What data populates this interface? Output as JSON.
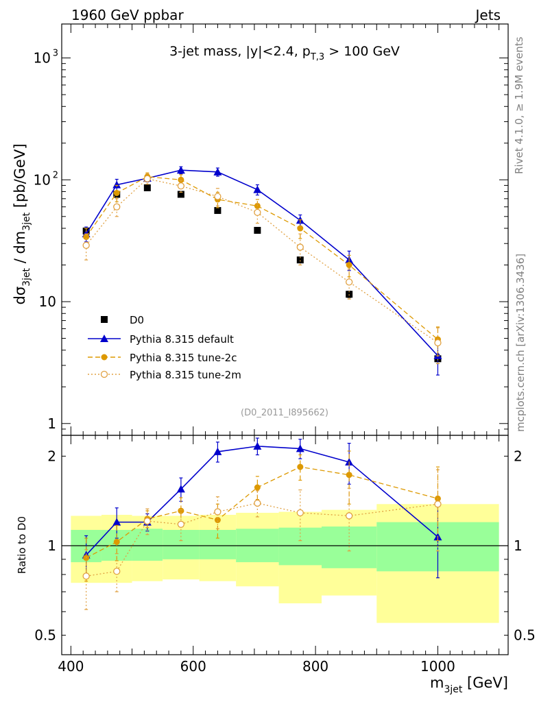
{
  "header": {
    "left": "1960 GeV ppbar",
    "right": "Jets"
  },
  "side_labels": {
    "rivet": "Rivet 4.1.0, ≥ 1.9M events",
    "mcplots": "mcplots.cern.ch [arXiv:1306.3436]"
  },
  "colors": {
    "data": "#000000",
    "default": "#0000cc",
    "tune2c": "#dd9900",
    "tune2m": "#e0a040",
    "band_inner": "#99ff99",
    "band_outer": "#ffff99"
  },
  "chart_data": [
    {
      "type": "line",
      "title": "3-jet mass, |y|<2.4, p_T,3 > 100 GeV",
      "title_parts": {
        "main": "3-jet mass, |y|<2.4, p",
        "sub": "T,3",
        "tail": " > 100 GeV"
      },
      "analysis_id": "(D0_2011_I895662)",
      "ylabel": "dσ_3jet / dm_3jet [pb/GeV]",
      "ylabel_parts": {
        "a": "dσ",
        "a_sub": "3jet",
        "b": " / dm",
        "b_sub": "3jet",
        "c": " [pb/GeV]"
      },
      "yscale": "log",
      "ylim": [
        0.8,
        1900
      ],
      "xlim": [
        385,
        1115
      ],
      "yticks": [
        {
          "v": 1,
          "label": "1"
        },
        {
          "v": 10,
          "label": "10"
        }
      ],
      "ytick_pow": [
        {
          "v": 100,
          "base": "10",
          "exp": "2"
        },
        {
          "v": 1000,
          "base": "10",
          "exp": "3"
        }
      ],
      "legend_position": "middle-left",
      "legend": [
        "D0",
        "Pythia 8.315 default",
        "Pythia 8.315 tune-2c",
        "Pythia 8.315 tune-2m"
      ],
      "data": {
        "name": "D0",
        "x": [
          425,
          475,
          525,
          580,
          640,
          705,
          775,
          855,
          1000
        ],
        "y": [
          38,
          76,
          86,
          76,
          56,
          38.5,
          22,
          11.5,
          3.4
        ],
        "err": [
          2,
          4,
          4,
          3,
          2.5,
          2,
          1,
          0.7,
          0.3
        ]
      },
      "series": [
        {
          "name": "Pythia 8.315 default",
          "x": [
            425,
            475,
            525,
            580,
            640,
            705,
            775,
            855,
            1000
          ],
          "y": [
            36,
            91,
            103,
            120,
            116,
            83,
            46.5,
            22,
            3.6
          ],
          "err": [
            5,
            10,
            7,
            8,
            9,
            8,
            5,
            4,
            1.1
          ]
        },
        {
          "name": "Pythia 8.315 tune-2c",
          "x": [
            425,
            475,
            525,
            580,
            640,
            705,
            775,
            855,
            1000
          ],
          "y": [
            34,
            78,
            106,
            100,
            69,
            61,
            40,
            20,
            4.9
          ],
          "err": [
            6,
            12,
            8,
            10,
            10,
            8,
            7,
            4,
            1.3
          ]
        },
        {
          "name": "Pythia 8.315 tune-2m",
          "x": [
            425,
            475,
            525,
            580,
            640,
            705,
            775,
            855,
            1000
          ],
          "y": [
            29,
            60,
            102,
            89,
            73,
            54,
            28,
            14.5,
            4.6
          ],
          "err": [
            7,
            10,
            10,
            10,
            12,
            10,
            8,
            4,
            1.5
          ]
        }
      ]
    },
    {
      "type": "line",
      "ylabel": "Ratio to D0",
      "xlabel": "m_3jet [GeV]",
      "xlabel_parts": {
        "a": "m",
        "a_sub": "3jet",
        "b": " [GeV]"
      },
      "yscale": "log",
      "ylim": [
        0.43,
        2.35
      ],
      "xlim": [
        385,
        1115
      ],
      "yticks": [
        {
          "v": 0.5,
          "label": "0.5"
        },
        {
          "v": 1,
          "label": "1"
        },
        {
          "v": 2,
          "label": "2"
        }
      ],
      "xticks": [
        {
          "v": 400,
          "label": "400"
        },
        {
          "v": 600,
          "label": "600"
        },
        {
          "v": 800,
          "label": "800"
        },
        {
          "v": 1000,
          "label": "1000"
        }
      ],
      "reference_line": 1,
      "bands": {
        "edges": [
          400,
          450,
          500,
          550,
          610,
          670,
          740,
          810,
          900,
          1100
        ],
        "inner_lo": [
          0.88,
          0.89,
          0.89,
          0.9,
          0.9,
          0.88,
          0.86,
          0.84,
          0.82
        ],
        "inner_hi": [
          1.13,
          1.13,
          1.14,
          1.13,
          1.13,
          1.14,
          1.15,
          1.16,
          1.2
        ],
        "outer_lo": [
          0.75,
          0.75,
          0.76,
          0.77,
          0.76,
          0.73,
          0.64,
          0.68,
          0.55
        ],
        "outer_hi": [
          1.26,
          1.27,
          1.26,
          1.26,
          1.27,
          1.29,
          1.3,
          1.32,
          1.38
        ]
      },
      "series": [
        {
          "name": "Pythia 8.315 default",
          "x": [
            425,
            475,
            525,
            580,
            640,
            705,
            775,
            855,
            1000
          ],
          "y": [
            0.93,
            1.2,
            1.2,
            1.55,
            2.07,
            2.16,
            2.12,
            1.91,
            1.07
          ],
          "err": [
            0.15,
            0.14,
            0.08,
            0.14,
            0.16,
            0.14,
            0.16,
            0.3,
            0.29
          ]
        },
        {
          "name": "Pythia 8.315 tune-2c",
          "x": [
            425,
            475,
            525,
            580,
            640,
            705,
            775,
            855,
            1000
          ],
          "y": [
            0.91,
            1.03,
            1.23,
            1.31,
            1.22,
            1.57,
            1.84,
            1.73,
            1.44
          ],
          "err": [
            0.15,
            0.14,
            0.08,
            0.14,
            0.16,
            0.14,
            0.18,
            0.35,
            0.4
          ]
        },
        {
          "name": "Pythia 8.315 tune-2m",
          "x": [
            425,
            475,
            525,
            580,
            640,
            705,
            775,
            855,
            1000
          ],
          "y": [
            0.79,
            0.82,
            1.21,
            1.18,
            1.3,
            1.39,
            1.29,
            1.26,
            1.38
          ],
          "err": [
            0.18,
            0.12,
            0.12,
            0.14,
            0.16,
            0.14,
            0.25,
            0.3,
            0.42
          ]
        }
      ]
    }
  ]
}
